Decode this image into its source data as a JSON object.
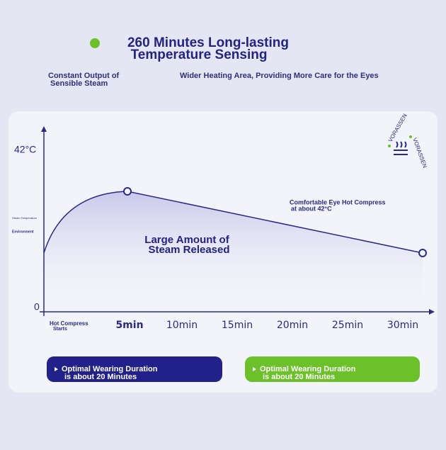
{
  "header": {
    "title_lines": [
      "260 Minutes Long-lasting",
      "Temperature Sensing"
    ],
    "left_caption": [
      "Constant Output of",
      "Sensible Steam"
    ],
    "right_caption": "Wider Heating Area, Providing More Care for the Eyes"
  },
  "chart": {
    "y_labels": [
      "42°C",
      "0"
    ],
    "y_side_notes": [
      "Steam Temperature",
      "Environment"
    ],
    "x_start": [
      "Hot Compress",
      "Starts"
    ],
    "x_labels": [
      "5min",
      "10min",
      "15min",
      "20min",
      "25min",
      "30min"
    ],
    "annotation_right": [
      "Comfortable Eye Hot Compress",
      "at about 42°C"
    ],
    "annotation_center": [
      "Large Amount of",
      "Steam Released"
    ],
    "logo": "VORASSEN"
  },
  "buttons": [
    {
      "lines": [
        "Optimal Wearing Duration",
        "is about 20 Minutes"
      ]
    },
    {
      "lines": [
        "Optimal Wearing Duration",
        "is about 20 Minutes"
      ]
    }
  ]
}
